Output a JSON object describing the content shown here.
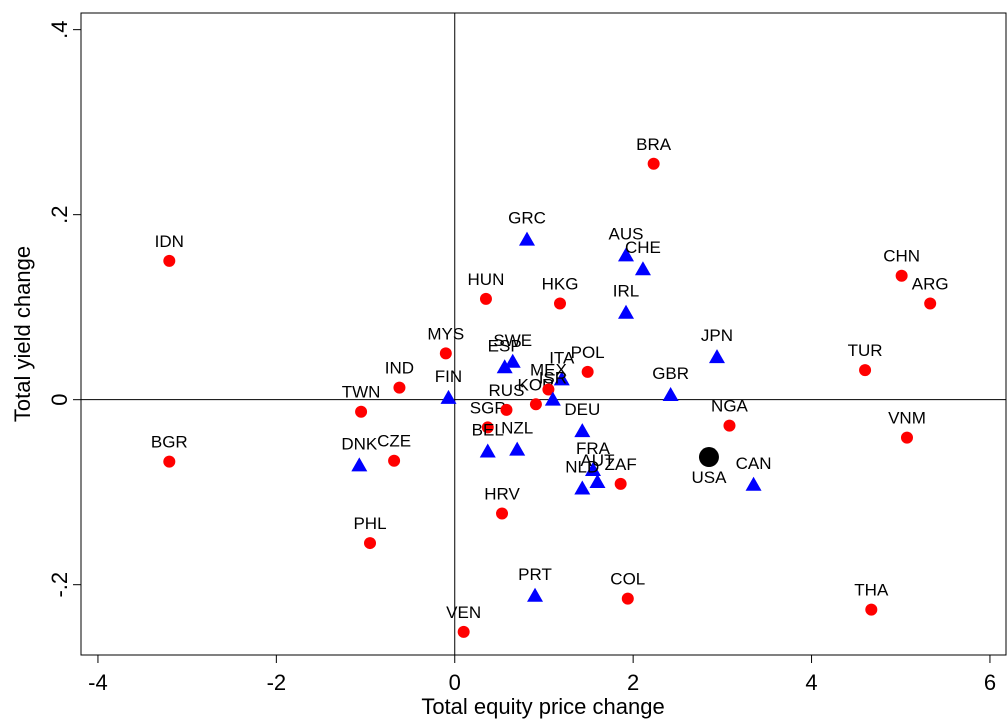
{
  "chart_data": {
    "type": "scatter",
    "x_label": "Total equity price change",
    "y_label": "Total yield change",
    "xlim": [
      -4.19,
      6.18
    ],
    "ylim": [
      -0.276,
      0.418
    ],
    "xticks": [
      -4,
      -2,
      0,
      2,
      4,
      6
    ],
    "yticks": [
      {
        "value": -0.2,
        "label": "-.2"
      },
      0,
      {
        "value": 0.2,
        "label": ".2"
      },
      {
        "value": 0.4,
        "label": ".4"
      }
    ],
    "zero_lines": true,
    "series": [
      {
        "color": "#ff0000",
        "marker": "circle",
        "size": 6,
        "label_position": "above",
        "labels": [
          "IDN",
          "BGR",
          "TWN",
          "IND",
          "CZE",
          "PHL",
          "MYS",
          "HUN",
          "SGP",
          "RUS",
          "KOR",
          "MEX",
          "HRV",
          "VEN",
          "HKG",
          "POL",
          "BRA",
          "ZAF",
          "COL",
          "NGA",
          "TUR",
          "CHN",
          "ARG",
          "VNM",
          "THA"
        ],
        "x": [
          -3.2,
          -3.2,
          -1.05,
          -0.62,
          -0.68,
          -0.95,
          -0.1,
          0.35,
          0.37,
          0.58,
          0.91,
          1.05,
          0.53,
          0.1,
          1.18,
          1.49,
          2.23,
          1.86,
          1.94,
          3.08,
          4.6,
          5.01,
          5.33,
          5.07,
          4.67
        ],
        "values": [
          0.15,
          -0.067,
          -0.013,
          0.013,
          -0.066,
          -0.155,
          0.05,
          0.109,
          -0.03,
          -0.011,
          -0.005,
          0.011,
          -0.123,
          -0.251,
          0.104,
          0.03,
          0.255,
          -0.091,
          -0.215,
          -0.028,
          0.032,
          0.134,
          0.104,
          -0.041,
          -0.227
        ]
      },
      {
        "color": "#0000ff",
        "marker": "triangle",
        "size": 8,
        "label_position": "above",
        "labels": [
          "FIN",
          "DNK",
          "BEL",
          "NZL",
          "ESP",
          "SWE",
          "ITA",
          "ISR",
          "GRC",
          "AUS",
          "CHE",
          "IRL",
          "JPN",
          "GBR",
          "DEU",
          "FRA",
          "AUT",
          "NLD",
          "CAN",
          "PRT"
        ],
        "x": [
          -0.07,
          -1.07,
          0.37,
          0.7,
          0.56,
          0.65,
          1.2,
          1.1,
          0.81,
          1.92,
          2.11,
          1.92,
          2.94,
          2.42,
          1.43,
          1.55,
          1.6,
          1.43,
          3.35,
          0.9
        ],
        "values": [
          0.002,
          -0.071,
          -0.056,
          -0.054,
          0.035,
          0.041,
          0.022,
          0.0,
          0.173,
          0.156,
          0.141,
          0.094,
          0.046,
          0.005,
          -0.034,
          -0.076,
          -0.089,
          -0.096,
          -0.092,
          -0.212
        ]
      },
      {
        "color": "#000000",
        "marker": "circle",
        "size": 10,
        "label_position": "below",
        "labels": [
          "USA"
        ],
        "x": [
          2.85
        ],
        "values": [
          -0.062
        ]
      }
    ]
  }
}
